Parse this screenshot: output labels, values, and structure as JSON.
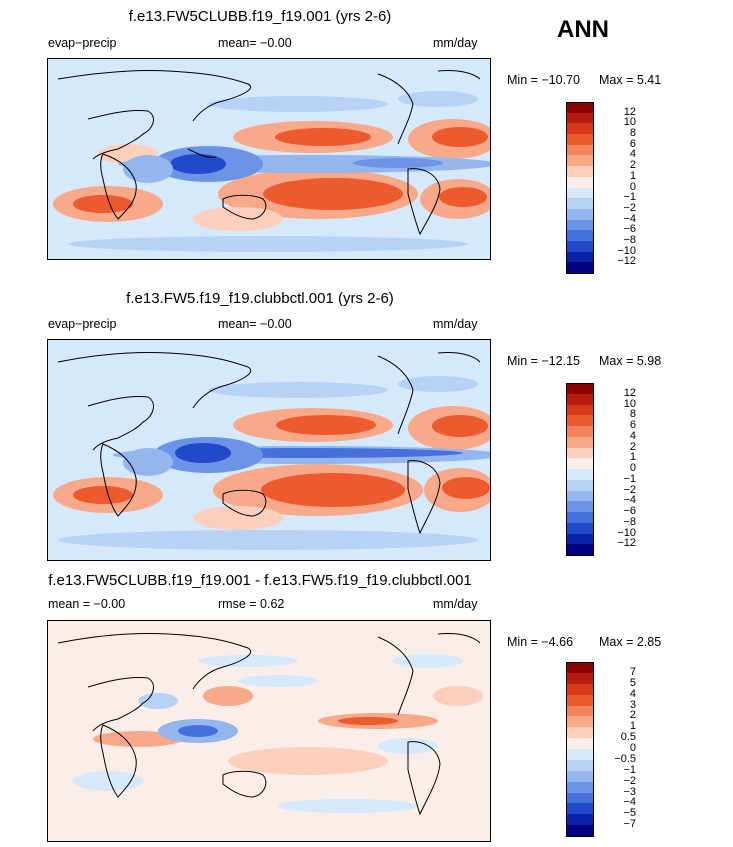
{
  "season_label": "ANN",
  "panels": [
    {
      "title": "f.e13.FW5CLUBB.f19_f19.001 (yrs 2-6)",
      "left_label": "evap−precip",
      "center_label": "mean=   −0.00",
      "units": "mm/day",
      "stats_min_label": "Min = −10.70",
      "stats_max_label": "Max =   5.41",
      "levels": [
        "12",
        "10",
        "8",
        "6",
        "4",
        "2",
        "1",
        "0",
        "−1",
        "−2",
        "−4",
        "−6",
        "−8",
        "−10",
        "−12"
      ],
      "colors": [
        "#8b0000",
        "#b81a0e",
        "#d63a1a",
        "#ec5a2e",
        "#f4845b",
        "#f8a98a",
        "#fccfbd",
        "#fbeee8",
        "#d6e8fb",
        "#b7d2f5",
        "#94b6ee",
        "#6c94e6",
        "#4670dc",
        "#2249c9",
        "#0a22a8",
        "#000080"
      ]
    },
    {
      "title": "f.e13.FW5.f19_f19.clubbctl.001 (yrs 2-6)",
      "left_label": "evap−precip",
      "center_label": "mean=   −0.00",
      "units": "mm/day",
      "stats_min_label": "Min = −12.15",
      "stats_max_label": "Max =   5.98",
      "levels": [
        "12",
        "10",
        "8",
        "6",
        "4",
        "2",
        "1",
        "0",
        "−1",
        "−2",
        "−4",
        "−6",
        "−8",
        "−10",
        "−12"
      ],
      "colors": [
        "#8b0000",
        "#b81a0e",
        "#d63a1a",
        "#ec5a2e",
        "#f4845b",
        "#f8a98a",
        "#fccfbd",
        "#fbeee8",
        "#d6e8fb",
        "#b7d2f5",
        "#94b6ee",
        "#6c94e6",
        "#4670dc",
        "#2249c9",
        "#0a22a8",
        "#000080"
      ]
    },
    {
      "title": "f.e13.FW5CLUBB.f19_f19.001 - f.e13.FW5.f19_f19.clubbctl.001",
      "left_label": "mean =   −0.00",
      "center_label": "rmse =    0.62",
      "units": "mm/day",
      "stats_min_label": "Min =  −4.66",
      "stats_max_label": "Max =   2.85",
      "levels": [
        "7",
        "5",
        "4",
        "3",
        "2",
        "1",
        "0.5",
        "0",
        "−0.5",
        "−1",
        "−2",
        "−3",
        "−4",
        "−5",
        "−7"
      ],
      "colors": [
        "#8b0000",
        "#b81a0e",
        "#d63a1a",
        "#ec5a2e",
        "#f4845b",
        "#f8a98a",
        "#fccfbd",
        "#fbeee8",
        "#d6e8fb",
        "#b7d2f5",
        "#94b6ee",
        "#6c94e6",
        "#4670dc",
        "#2249c9",
        "#0a22a8",
        "#000080"
      ]
    }
  ]
}
